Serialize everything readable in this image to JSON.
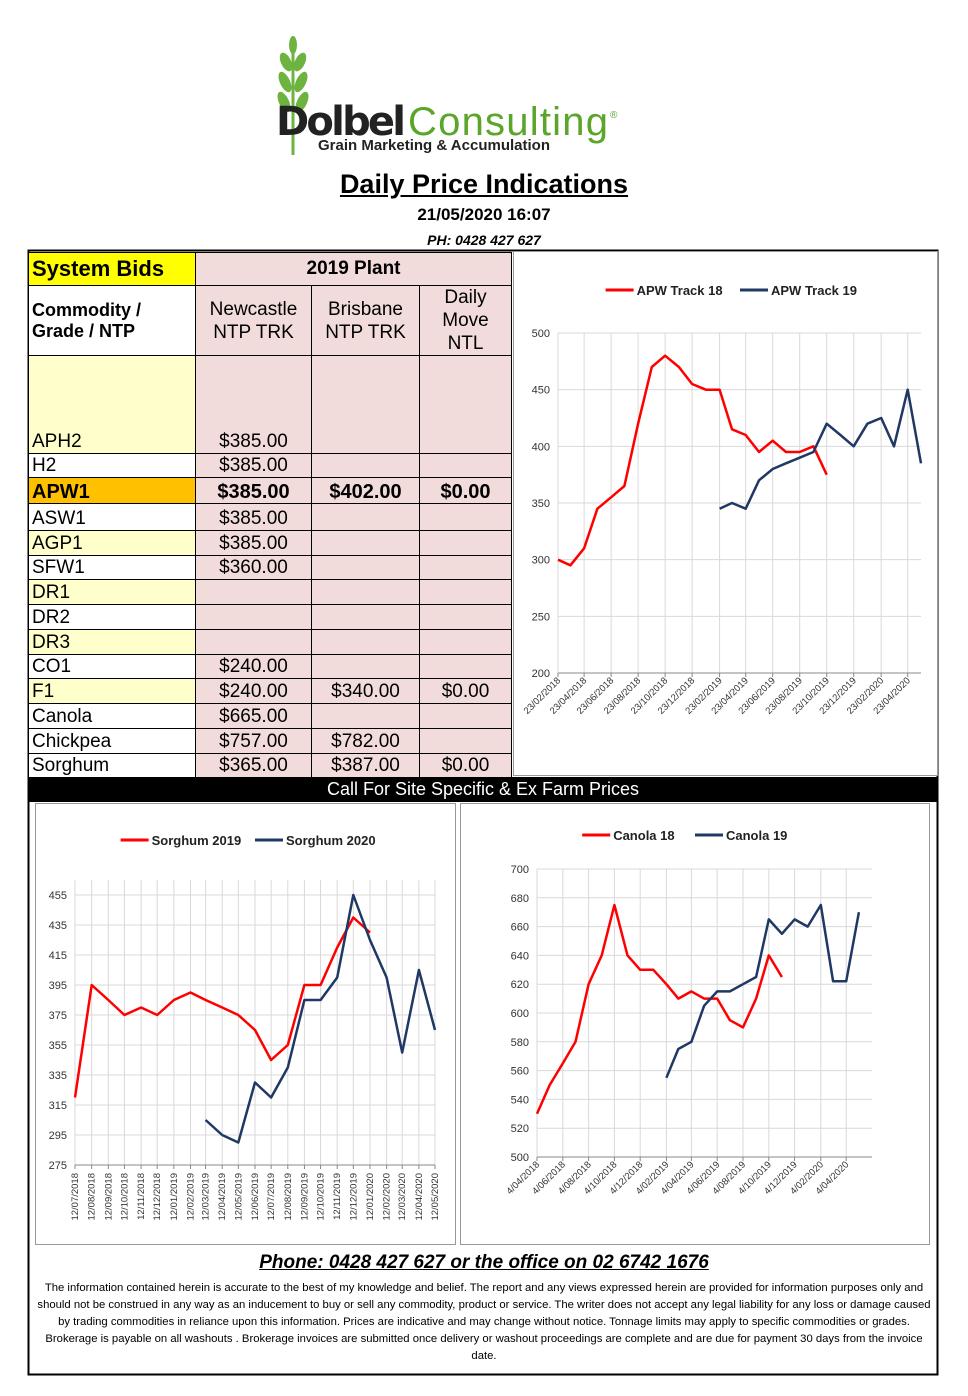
{
  "header": {
    "logo_name_1": "Dolbel",
    "logo_name_2": "Consulting",
    "logo_mark": "®",
    "tagline": "Grain Marketing & Accumulation",
    "title": "Daily Price Indications",
    "datetime": "21/05/2020 16:07",
    "phone": "PH: 0428 427 627"
  },
  "table": {
    "header": [
      "System Bids",
      "2019 Plant"
    ],
    "columns": [
      "Commodity / Grade / NTP",
      "Newcastle NTP TRK",
      "Brisbane NTP TRK",
      "Daily Move NTL"
    ],
    "rows": [
      [
        "APH2",
        "$385.00",
        null,
        null
      ],
      [
        "H2",
        "$385.00",
        null,
        null
      ],
      [
        "APW1",
        "$385.00",
        "$402.00",
        "$0.00"
      ],
      [
        "ASW1",
        "$385.00",
        null,
        null
      ],
      [
        "AGP1",
        "$385.00",
        null,
        null
      ],
      [
        "SFW1",
        "$360.00",
        null,
        null
      ],
      [
        "DR1",
        null,
        null,
        null
      ],
      [
        "DR2",
        null,
        null,
        null
      ],
      [
        "DR3",
        null,
        null,
        null
      ],
      [
        "CO1",
        "$240.00",
        null,
        null
      ],
      [
        "F1",
        "$240.00",
        "$340.00",
        "$0.00"
      ],
      [
        "Canola",
        "$665.00",
        null,
        null
      ],
      [
        "Chickpea",
        "$757.00",
        "$782.00",
        null
      ],
      [
        "Sorghum",
        "$365.00",
        "$387.00",
        "$0.00"
      ]
    ]
  },
  "banner": "Call For Site Specific & Ex Farm Prices",
  "chart_data": [
    {
      "type": "line",
      "x": [
        "23/02/2018",
        "23/03/2018",
        "23/04/2018",
        "23/05/2018",
        "23/06/2018",
        "23/07/2018",
        "23/08/2018",
        "23/09/2018",
        "23/10/2018",
        "23/11/2018",
        "23/12/2018",
        "23/01/2019",
        "23/02/2019",
        "23/03/2019",
        "23/04/2019",
        "23/05/2019",
        "23/06/2019",
        "23/07/2019",
        "23/08/2019",
        "23/09/2019",
        "23/10/2019",
        "23/11/2019",
        "23/12/2019",
        "23/01/2020",
        "23/02/2020",
        "23/03/2020",
        "23/04/2020",
        "23/05/2020"
      ],
      "series": [
        {
          "name": "APW Track 18",
          "color": "#ff0000",
          "values": [
            300,
            295,
            310,
            345,
            355,
            365,
            420,
            470,
            480,
            470,
            455,
            450,
            450,
            415,
            410,
            395,
            405,
            395,
            395,
            400,
            375,
            null,
            null,
            null,
            null,
            null,
            null,
            null
          ]
        },
        {
          "name": "APW Track 19",
          "color": "#203864",
          "values": [
            null,
            null,
            null,
            null,
            null,
            null,
            null,
            null,
            null,
            null,
            null,
            null,
            345,
            350,
            345,
            370,
            380,
            385,
            390,
            395,
            420,
            410,
            400,
            420,
            425,
            400,
            450,
            385
          ]
        }
      ],
      "xlim": [
        "23/02/2018",
        "23/05/2020"
      ],
      "xticks": [
        "23/02/2018",
        "23/04/2018",
        "23/06/2018",
        "23/08/2018",
        "23/10/2018",
        "23/12/2018",
        "23/02/2019",
        "23/04/2019",
        "23/06/2019",
        "23/08/2019",
        "23/10/2019",
        "23/12/2019",
        "23/02/2020",
        "23/04/2020"
      ],
      "ylim": [
        200,
        500
      ],
      "yticks": [
        200,
        250,
        300,
        350,
        400,
        450,
        500
      ],
      "grid": true,
      "legend": "top"
    },
    {
      "type": "line",
      "x": [
        "12/07/2018",
        "12/08/2018",
        "12/09/2018",
        "12/10/2018",
        "12/11/2018",
        "12/12/2018",
        "12/01/2019",
        "12/02/2019",
        "12/03/2019",
        "12/04/2019",
        "12/05/2019",
        "12/06/2019",
        "12/07/2019",
        "12/08/2019",
        "12/09/2019",
        "12/10/2019",
        "12/11/2019",
        "12/12/2019",
        "12/01/2020",
        "12/02/2020",
        "12/03/2020",
        "12/04/2020",
        "12/05/2020"
      ],
      "series": [
        {
          "name": "Sorghum 2019",
          "color": "#ff0000",
          "values": [
            320,
            395,
            385,
            375,
            380,
            375,
            385,
            390,
            385,
            380,
            375,
            365,
            345,
            355,
            395,
            395,
            420,
            440,
            430,
            null,
            null,
            null,
            null
          ]
        },
        {
          "name": "Sorghum 2020",
          "color": "#203864",
          "values": [
            null,
            null,
            null,
            null,
            null,
            null,
            null,
            null,
            305,
            295,
            290,
            330,
            320,
            340,
            385,
            385,
            400,
            455,
            425,
            400,
            350,
            405,
            365
          ]
        }
      ],
      "xlim": [
        "12/07/2018",
        "12/05/2020"
      ],
      "xticks": [
        "12/07/2018",
        "12/08/2018",
        "12/09/2018",
        "12/10/2018",
        "12/11/2018",
        "12/12/2018",
        "12/01/2019",
        "12/02/2019",
        "12/03/2019",
        "12/04/2019",
        "12/05/2019",
        "12/06/2019",
        "12/07/2019",
        "12/08/2019",
        "12/09/2019",
        "12/10/2019",
        "12/11/2019",
        "12/12/2019",
        "12/01/2020",
        "12/02/2020",
        "12/03/2020",
        "12/04/2020",
        "12/05/2020"
      ],
      "ylim": [
        275,
        465
      ],
      "yticks": [
        275,
        295,
        315,
        335,
        355,
        375,
        395,
        415,
        435,
        455
      ],
      "grid": true,
      "legend": "top"
    },
    {
      "type": "line",
      "x": [
        "4/04/2018",
        "4/05/2018",
        "4/06/2018",
        "4/07/2018",
        "4/08/2018",
        "4/09/2018",
        "4/10/2018",
        "4/11/2018",
        "4/12/2018",
        "4/01/2019",
        "4/02/2019",
        "4/03/2019",
        "4/04/2019",
        "4/05/2019",
        "4/06/2019",
        "4/07/2019",
        "4/08/2019",
        "4/09/2019",
        "4/10/2019",
        "4/11/2019",
        "4/12/2019",
        "4/01/2020",
        "4/02/2020",
        "4/03/2020",
        "4/04/2020",
        "4/05/2020"
      ],
      "series": [
        {
          "name": "Canola 18",
          "color": "#ff0000",
          "values": [
            530,
            550,
            565,
            580,
            620,
            640,
            675,
            640,
            630,
            630,
            620,
            610,
            615,
            610,
            610,
            595,
            590,
            610,
            640,
            625,
            null,
            null,
            null,
            null,
            null,
            null
          ]
        },
        {
          "name": "Canola 19",
          "color": "#203864",
          "values": [
            null,
            null,
            null,
            null,
            null,
            null,
            null,
            null,
            null,
            null,
            555,
            575,
            580,
            605,
            615,
            615,
            620,
            625,
            665,
            655,
            665,
            660,
            675,
            622,
            622,
            670
          ]
        }
      ],
      "xlim": [
        "4/04/2018",
        "4/06/2020"
      ],
      "xticks": [
        "4/04/2018",
        "4/06/2018",
        "4/08/2018",
        "4/10/2018",
        "4/12/2018",
        "4/02/2019",
        "4/04/2019",
        "4/06/2019",
        "4/08/2019",
        "4/10/2019",
        "4/12/2019",
        "4/02/2020",
        "4/04/2020"
      ],
      "ylim": [
        500,
        700
      ],
      "yticks": [
        500,
        520,
        540,
        560,
        580,
        600,
        620,
        640,
        660,
        680,
        700
      ],
      "grid": true,
      "legend": "top"
    }
  ],
  "footer": {
    "phone": "Phone: 0428 427 627 or the office on 02 6742 1676",
    "disclaimer": "The information contained herein is accurate to the best of my knowledge and belief.  The report and any views expressed herein are provided for information purposes only and should not be construed in any way as an inducement to buy or sell any commodity, product or service. The writer does not accept any legal liability for any loss or damage caused by trading commodities in reliance upon this information. Prices are indicative and may change without notice. Tonnage limits may apply to specific commodities or grades.  Brokerage is payable on all washouts . Brokerage invoices are submitted once delivery or washout proceedings are complete and are due for payment 30 days from the invoice date."
  }
}
